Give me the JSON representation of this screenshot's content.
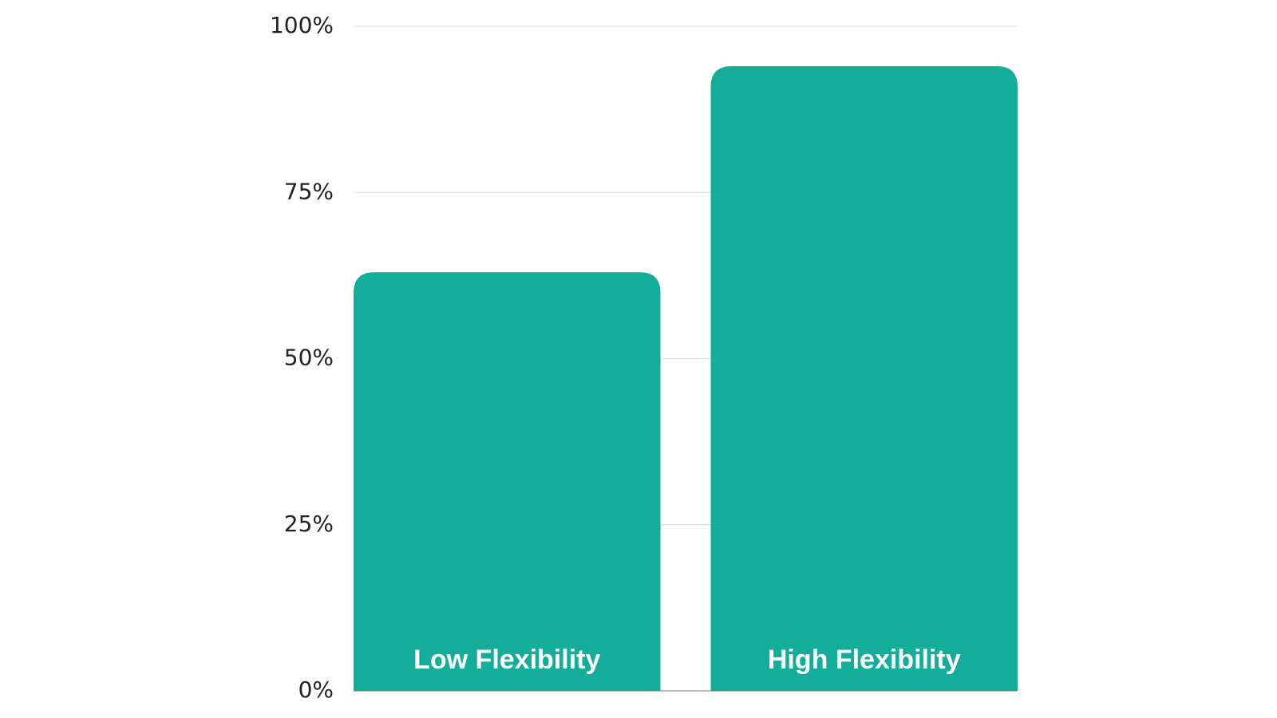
{
  "chart_data": {
    "type": "bar",
    "categories": [
      "Low Flexibility",
      "High Flexibility"
    ],
    "values": [
      63,
      94
    ],
    "color": "#13ad9a",
    "ylim": [
      0,
      100
    ],
    "yticks": [
      {
        "value": 0,
        "label": "0%"
      },
      {
        "value": 25,
        "label": "25%"
      },
      {
        "value": 50,
        "label": "50%"
      },
      {
        "value": 75,
        "label": "75%"
      },
      {
        "value": 100,
        "label": "100%"
      }
    ],
    "grid": true
  }
}
